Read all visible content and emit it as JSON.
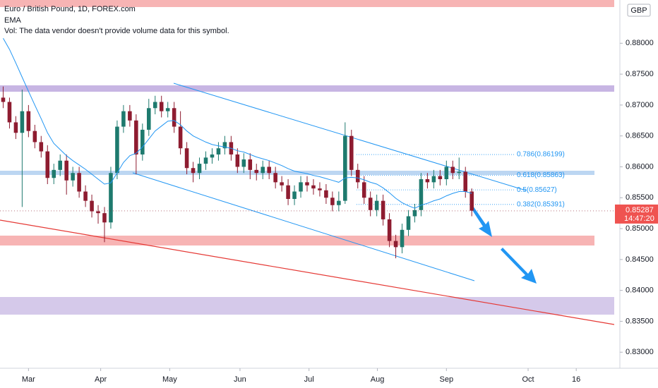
{
  "chart_data": {
    "type": "candlestick",
    "title": "Euro / British Pound, 1D, FOREX.com",
    "indicator": "EMA",
    "volume_note": "Vol: The data vendor doesn't provide volume data for this symbol.",
    "currency": "GBP",
    "last_price": 0.85287,
    "countdown": "14:47:20",
    "up_color": "#1e7a6e",
    "down_color": "#8e1c30",
    "ema_color": "#2196f3",
    "open": [
      0.8712,
      0.8705,
      0.8672,
      0.8655,
      0.869,
      0.8658,
      0.864,
      0.8625,
      0.8582,
      0.8595,
      0.861,
      0.8578,
      0.859,
      0.856,
      0.8545,
      0.8528,
      0.8525,
      0.851,
      0.859,
      0.8665,
      0.869,
      0.8675,
      0.862,
      0.866,
      0.8695,
      0.8705,
      0.869,
      0.8695,
      0.8665,
      0.863,
      0.8598,
      0.859,
      0.8605,
      0.8615,
      0.862,
      0.863,
      0.864,
      0.862,
      0.86,
      0.8612,
      0.8595,
      0.859,
      0.86,
      0.859,
      0.8575,
      0.857,
      0.8548,
      0.856,
      0.8575,
      0.857,
      0.8565,
      0.8562,
      0.855,
      0.8538,
      0.8545,
      0.865,
      0.8595,
      0.8575,
      0.855,
      0.853,
      0.8545,
      0.8515,
      0.848,
      0.847,
      0.8498,
      0.852,
      0.853,
      0.858,
      0.8575,
      0.8585,
      0.858,
      0.86,
      0.859,
      0.8592,
      0.856
    ],
    "high": [
      0.873,
      0.8712,
      0.8682,
      0.8725,
      0.87,
      0.8668,
      0.865,
      0.8635,
      0.8605,
      0.862,
      0.862,
      0.86,
      0.86,
      0.857,
      0.8555,
      0.8538,
      0.8535,
      0.86,
      0.8675,
      0.87,
      0.87,
      0.8685,
      0.867,
      0.871,
      0.8715,
      0.8715,
      0.8705,
      0.8705,
      0.869,
      0.864,
      0.8608,
      0.8615,
      0.8625,
      0.863,
      0.864,
      0.865,
      0.865,
      0.863,
      0.8622,
      0.8622,
      0.8605,
      0.861,
      0.861,
      0.86,
      0.8585,
      0.858,
      0.857,
      0.8585,
      0.8585,
      0.858,
      0.8575,
      0.8572,
      0.856,
      0.856,
      0.8672,
      0.866,
      0.8605,
      0.8585,
      0.856,
      0.8555,
      0.8555,
      0.8525,
      0.849,
      0.8508,
      0.853,
      0.854,
      0.859,
      0.859,
      0.8595,
      0.8595,
      0.861,
      0.861,
      0.8615,
      0.86,
      0.8565
    ],
    "low": [
      0.8695,
      0.8662,
      0.8645,
      0.8535,
      0.8648,
      0.863,
      0.8615,
      0.8572,
      0.8572,
      0.8585,
      0.8555,
      0.8568,
      0.855,
      0.8535,
      0.8518,
      0.8508,
      0.8478,
      0.85,
      0.858,
      0.8655,
      0.8665,
      0.8588,
      0.861,
      0.865,
      0.8685,
      0.868,
      0.868,
      0.8655,
      0.862,
      0.8588,
      0.8575,
      0.858,
      0.8595,
      0.8605,
      0.861,
      0.862,
      0.861,
      0.859,
      0.859,
      0.858,
      0.8578,
      0.858,
      0.858,
      0.8565,
      0.856,
      0.8538,
      0.8538,
      0.855,
      0.856,
      0.8555,
      0.8552,
      0.854,
      0.8528,
      0.8528,
      0.854,
      0.8585,
      0.8565,
      0.854,
      0.852,
      0.852,
      0.8505,
      0.847,
      0.8452,
      0.846,
      0.8488,
      0.851,
      0.852,
      0.8565,
      0.8565,
      0.857,
      0.857,
      0.858,
      0.858,
      0.855,
      0.852
    ],
    "close": [
      0.8705,
      0.8672,
      0.8655,
      0.869,
      0.8658,
      0.864,
      0.8625,
      0.8582,
      0.8595,
      0.861,
      0.8578,
      0.859,
      0.856,
      0.8545,
      0.8528,
      0.8525,
      0.851,
      0.859,
      0.8665,
      0.869,
      0.8675,
      0.862,
      0.866,
      0.8695,
      0.8705,
      0.869,
      0.8695,
      0.8665,
      0.863,
      0.8598,
      0.859,
      0.8605,
      0.8615,
      0.862,
      0.863,
      0.864,
      0.862,
      0.86,
      0.8612,
      0.8595,
      0.859,
      0.86,
      0.859,
      0.8575,
      0.857,
      0.8548,
      0.856,
      0.8575,
      0.857,
      0.8565,
      0.8562,
      0.855,
      0.8538,
      0.8545,
      0.865,
      0.8595,
      0.8575,
      0.855,
      0.853,
      0.8545,
      0.8515,
      0.848,
      0.847,
      0.8498,
      0.852,
      0.853,
      0.858,
      0.8575,
      0.8585,
      0.858,
      0.86,
      0.859,
      0.8592,
      0.856,
      0.8529
    ],
    "ema": [
      0.8808,
      0.879,
      0.8768,
      0.8745,
      0.8722,
      0.87,
      0.8678,
      0.8655,
      0.8638,
      0.8628,
      0.8618,
      0.861,
      0.8603,
      0.8596,
      0.8588,
      0.858,
      0.8572,
      0.8574,
      0.859,
      0.8607,
      0.8618,
      0.8622,
      0.8632,
      0.8645,
      0.8658,
      0.8666,
      0.8674,
      0.8675,
      0.8668,
      0.8658,
      0.865,
      0.8645,
      0.864,
      0.8636,
      0.8634,
      0.8632,
      0.863,
      0.8626,
      0.8624,
      0.862,
      0.8616,
      0.8613,
      0.861,
      0.8606,
      0.8602,
      0.8597,
      0.8593,
      0.8591,
      0.8589,
      0.8586,
      0.8584,
      0.8581,
      0.8578,
      0.8575,
      0.8582,
      0.8583,
      0.8582,
      0.8579,
      0.8575,
      0.8572,
      0.8566,
      0.8558,
      0.8549,
      0.8542,
      0.8537,
      0.8533,
      0.8538,
      0.8541,
      0.8545,
      0.8548,
      0.8553,
      0.8557,
      0.856,
      0.856,
      0.8557
    ],
    "fib_levels": [
      {
        "label": "0.786(0.86199)",
        "price": 0.86199
      },
      {
        "label": "0.618(0.85863)",
        "price": 0.85863
      },
      {
        "label": "0.5(0.85627)",
        "price": 0.85627
      },
      {
        "label": "0.382(0.85391)",
        "price": 0.85391
      }
    ],
    "xlim": [
      -0.5,
      96.5
    ],
    "xticks": [
      {
        "value": 4.0,
        "label": "Mar"
      },
      {
        "value": 15.4,
        "label": "Apr"
      },
      {
        "value": 26.3,
        "label": "May"
      },
      {
        "value": 37.4,
        "label": "Jun"
      },
      {
        "value": 48.3,
        "label": "Jul"
      },
      {
        "value": 59.1,
        "label": "Aug"
      },
      {
        "value": 70.0,
        "label": "Sep"
      },
      {
        "value": 82.9,
        "label": "Oct"
      },
      {
        "value": 90.5,
        "label": "16"
      }
    ],
    "ylim": [
      0.8274,
      0.887
    ],
    "yticks": [
      {
        "value": 0.83,
        "label": "0.83000"
      },
      {
        "value": 0.835,
        "label": "0.83500"
      },
      {
        "value": 0.84,
        "label": "0.84000"
      },
      {
        "value": 0.845,
        "label": "0.84500"
      },
      {
        "value": 0.85,
        "label": "0.85000"
      },
      {
        "value": 0.855,
        "label": "0.85500"
      },
      {
        "value": 0.86,
        "label": "0.86000"
      },
      {
        "value": 0.865,
        "label": "0.86500"
      },
      {
        "value": 0.87,
        "label": "0.87000"
      },
      {
        "value": 0.875,
        "label": "0.87500"
      },
      {
        "value": 0.88,
        "label": "0.88000"
      }
    ]
  }
}
